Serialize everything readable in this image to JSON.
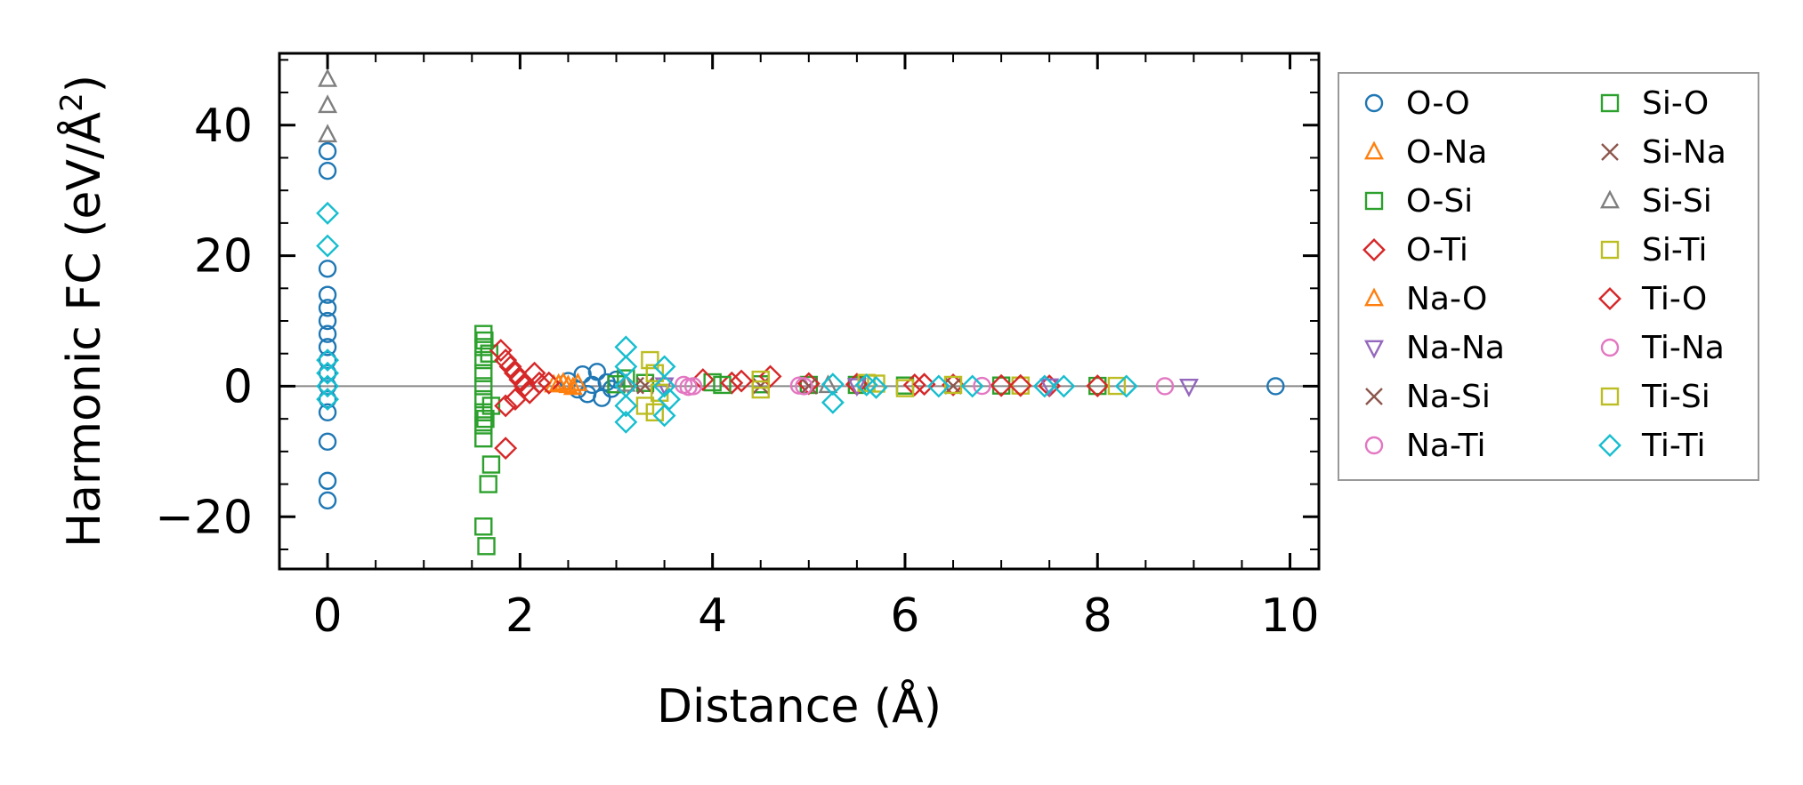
{
  "chart_data": {
    "type": "scatter",
    "xlabel": "Distance (Å)",
    "ylabel_main": "Harmonic FC (eV/Å",
    "ylabel_sup": "2",
    "ylabel_tail": ")",
    "xlim": [
      -0.5,
      10.3
    ],
    "ylim": [
      -28,
      51
    ],
    "xticks": [
      0,
      2,
      4,
      6,
      8,
      10
    ],
    "yticks": [
      -20,
      0,
      20,
      40
    ],
    "ytick_labels": [
      "−20",
      "0",
      "20",
      "40"
    ],
    "grid": false,
    "legend_position": "outside-right",
    "series": [
      {
        "name": "O-O",
        "marker": "circle",
        "color": "#1f77b4",
        "points": [
          [
            0,
            36
          ],
          [
            0,
            33
          ],
          [
            0,
            18
          ],
          [
            0,
            14
          ],
          [
            0,
            12
          ],
          [
            0,
            10
          ],
          [
            0,
            8
          ],
          [
            0,
            6
          ],
          [
            0,
            4
          ],
          [
            0,
            2
          ],
          [
            0,
            0
          ],
          [
            0,
            -2
          ],
          [
            0,
            -4
          ],
          [
            0,
            -8.5
          ],
          [
            0,
            -14.5
          ],
          [
            0,
            -17.5
          ],
          [
            2.5,
            0.8
          ],
          [
            2.6,
            -0.5
          ],
          [
            2.65,
            1.8
          ],
          [
            2.7,
            -1.2
          ],
          [
            2.75,
            0.2
          ],
          [
            2.8,
            2.2
          ],
          [
            2.85,
            -1.8
          ],
          [
            2.9,
            0.6
          ],
          [
            2.95,
            -0.4
          ],
          [
            3.0,
            1.0
          ],
          [
            9.85,
            0
          ]
        ]
      },
      {
        "name": "O-Na",
        "marker": "triangle-up",
        "color": "#ff7f0e",
        "points": [
          [
            2.35,
            0.2
          ],
          [
            2.45,
            0.5
          ],
          [
            2.55,
            -0.2
          ],
          [
            2.6,
            0.4
          ]
        ]
      },
      {
        "name": "O-Si",
        "marker": "square",
        "color": "#2ca02c",
        "points": [
          [
            1.62,
            8
          ],
          [
            1.62,
            6
          ],
          [
            1.62,
            4
          ],
          [
            1.62,
            2
          ],
          [
            1.62,
            0
          ],
          [
            1.62,
            -2
          ],
          [
            1.62,
            -4
          ],
          [
            1.62,
            -6
          ],
          [
            1.62,
            -8
          ],
          [
            1.62,
            -21.5
          ],
          [
            1.65,
            -24.5
          ],
          [
            1.67,
            -15
          ],
          [
            1.7,
            -12
          ],
          [
            1.68,
            5
          ],
          [
            1.7,
            -3
          ],
          [
            3.1,
            1.2
          ],
          [
            3.3,
            0.5
          ],
          [
            4.0,
            0.6
          ],
          [
            4.5,
            0.3
          ],
          [
            5.0,
            0.2
          ],
          [
            5.5,
            0.2
          ],
          [
            6.0,
            0.1
          ],
          [
            7.0,
            0.1
          ],
          [
            8.0,
            0.05
          ]
        ]
      },
      {
        "name": "O-Ti",
        "marker": "diamond",
        "color": "#d62728",
        "points": [
          [
            1.8,
            5.5
          ],
          [
            1.85,
            4
          ],
          [
            1.9,
            3
          ],
          [
            1.95,
            2
          ],
          [
            2.0,
            1
          ],
          [
            2.05,
            0
          ],
          [
            2.1,
            -1
          ],
          [
            2.2,
            0.5
          ],
          [
            1.85,
            -3
          ],
          [
            1.85,
            -9.5
          ],
          [
            2.3,
            0.5
          ],
          [
            3.9,
            1.0
          ],
          [
            4.2,
            0.5
          ],
          [
            4.6,
            1.5
          ],
          [
            5.0,
            0.4
          ],
          [
            5.5,
            0.3
          ],
          [
            6.1,
            0.2
          ],
          [
            6.5,
            0.2
          ],
          [
            7.0,
            0.1
          ],
          [
            7.5,
            0.05
          ],
          [
            8.0,
            0.05
          ]
        ]
      },
      {
        "name": "Na-O",
        "marker": "triangle-up",
        "color": "#ff7f0e",
        "points": [
          [
            2.4,
            0.3
          ],
          [
            2.5,
            0.1
          ]
        ]
      },
      {
        "name": "Na-Na",
        "marker": "triangle-down",
        "color": "#9467bd",
        "points": [
          [
            3.5,
            0.2
          ],
          [
            5.5,
            0.1
          ],
          [
            7.5,
            0.05
          ],
          [
            8.95,
            0
          ]
        ]
      },
      {
        "name": "Na-Si",
        "marker": "x",
        "color": "#8c564b",
        "points": [
          [
            3.2,
            0.1
          ],
          [
            4.5,
            0.05
          ],
          [
            6.5,
            0.05
          ]
        ]
      },
      {
        "name": "Na-Ti",
        "marker": "circle",
        "color": "#e377c2",
        "points": [
          [
            3.7,
            0.2
          ],
          [
            3.8,
            0
          ],
          [
            4.9,
            0.1
          ],
          [
            6.8,
            0.05
          ],
          [
            8.7,
            0
          ]
        ]
      },
      {
        "name": "Si-O",
        "marker": "square",
        "color": "#2ca02c",
        "points": [
          [
            1.63,
            7
          ],
          [
            1.64,
            -5
          ],
          [
            3.0,
            0.3
          ],
          [
            4.1,
            0.2
          ]
        ]
      },
      {
        "name": "Si-Na",
        "marker": "x",
        "color": "#8c564b",
        "points": [
          [
            3.3,
            0.1
          ],
          [
            5.0,
            0.05
          ]
        ]
      },
      {
        "name": "Si-Si",
        "marker": "triangle-up",
        "color": "#7f7f7f",
        "points": [
          [
            0,
            47
          ],
          [
            0,
            43
          ],
          [
            0,
            38.5
          ],
          [
            3.1,
            0.3
          ],
          [
            5.2,
            0.1
          ]
        ]
      },
      {
        "name": "Si-Ti",
        "marker": "square",
        "color": "#bcbd22",
        "points": [
          [
            3.35,
            4
          ],
          [
            3.4,
            2
          ],
          [
            3.45,
            -1
          ],
          [
            3.4,
            -4
          ],
          [
            4.5,
            -0.5
          ],
          [
            4.5,
            1
          ],
          [
            5.6,
            0.5
          ],
          [
            6.0,
            -0.3
          ],
          [
            6.5,
            0.2
          ],
          [
            7.2,
            0.1
          ],
          [
            8.2,
            0.05
          ]
        ]
      },
      {
        "name": "Ti-O",
        "marker": "diamond",
        "color": "#d62728",
        "points": [
          [
            1.95,
            -2
          ],
          [
            2.15,
            2
          ],
          [
            4.3,
            0.8
          ],
          [
            6.2,
            0.3
          ],
          [
            7.2,
            0.1
          ]
        ]
      },
      {
        "name": "Ti-Na",
        "marker": "circle",
        "color": "#e377c2",
        "points": [
          [
            3.75,
            -0.1
          ],
          [
            4.95,
            0
          ]
        ]
      },
      {
        "name": "Ti-Si",
        "marker": "square",
        "color": "#bcbd22",
        "points": [
          [
            3.3,
            -3
          ],
          [
            5.7,
            0.4
          ]
        ]
      },
      {
        "name": "Ti-Ti",
        "marker": "diamond",
        "color": "#17becf",
        "points": [
          [
            0,
            26.5
          ],
          [
            0,
            21.5
          ],
          [
            0,
            4
          ],
          [
            0,
            2
          ],
          [
            0,
            0
          ],
          [
            0,
            -2
          ],
          [
            3.1,
            6
          ],
          [
            3.1,
            3
          ],
          [
            3.1,
            0
          ],
          [
            3.1,
            -3
          ],
          [
            3.1,
            -5.5
          ],
          [
            3.5,
            3
          ],
          [
            3.5,
            0
          ],
          [
            3.5,
            -4.5
          ],
          [
            3.55,
            -2
          ],
          [
            5.25,
            0.3
          ],
          [
            5.25,
            -2.5
          ],
          [
            5.6,
            0.2
          ],
          [
            5.7,
            -0.2
          ],
          [
            6.35,
            0
          ],
          [
            6.7,
            0
          ],
          [
            7.45,
            0
          ],
          [
            7.65,
            0
          ],
          [
            8.3,
            0
          ]
        ]
      }
    ]
  }
}
